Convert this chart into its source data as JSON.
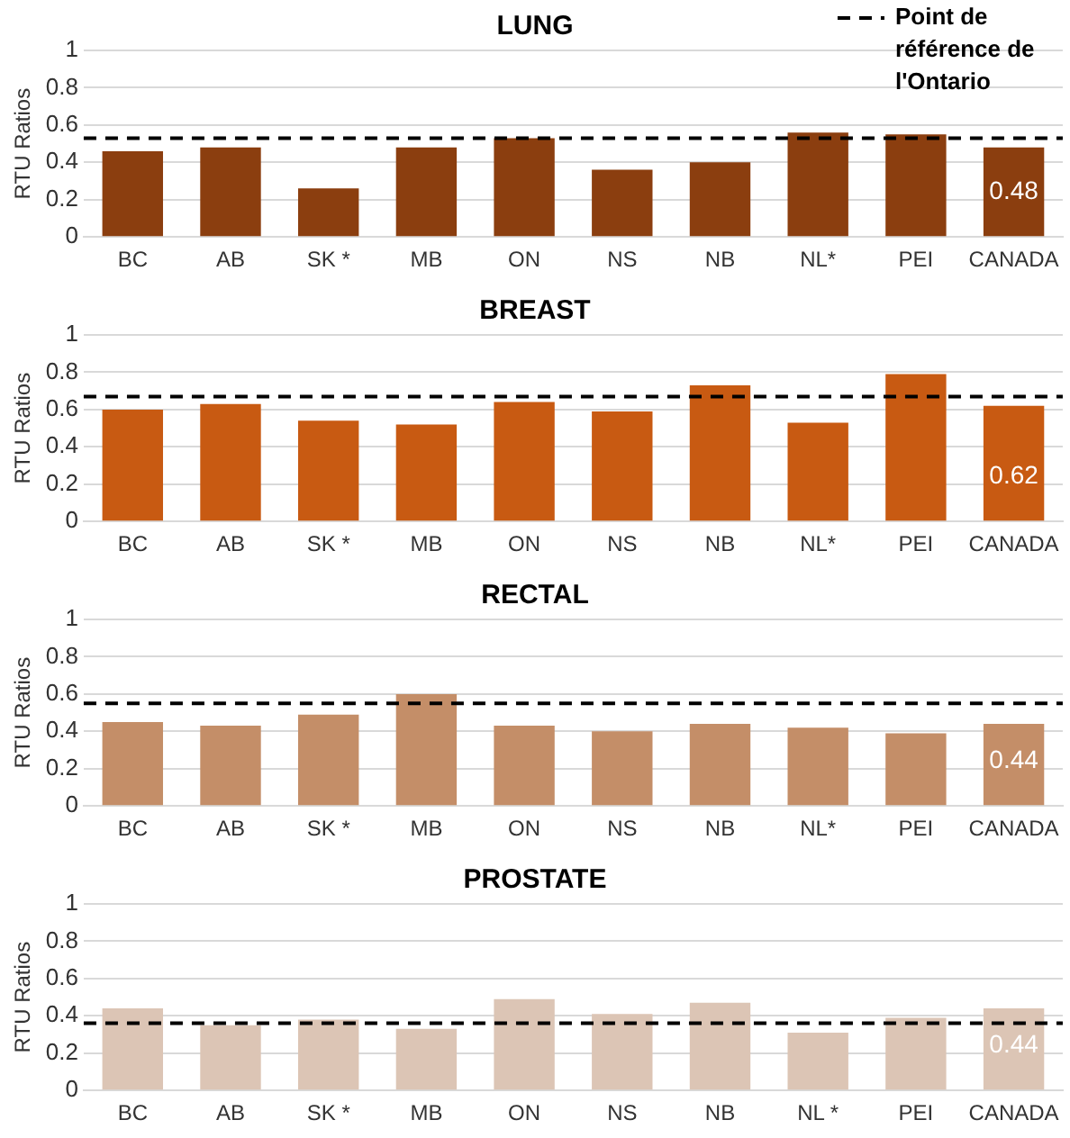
{
  "chart_data": [
    {
      "type": "bar",
      "title": "LUNG",
      "ylabel": "RTU Ratios",
      "categories": [
        "BC",
        "AB",
        "SK *",
        "MB",
        "ON",
        "NS",
        "NB",
        "NL*",
        "PEI",
        "CANADA"
      ],
      "values": [
        0.46,
        0.48,
        0.26,
        0.48,
        0.53,
        0.36,
        0.4,
        0.56,
        0.55,
        0.48
      ],
      "color": "#8b3e0f",
      "value_labels": [
        null,
        null,
        null,
        null,
        null,
        null,
        null,
        null,
        null,
        "0.48"
      ],
      "ylim": [
        0,
        1
      ],
      "yticks": [
        0,
        0.2,
        0.4,
        0.6,
        0.8,
        1
      ],
      "grid": "y",
      "legend": "top right",
      "ref_lines": [
        {
          "axis": "y",
          "value": 0.53,
          "label": "Point de référence de l'Ontario",
          "line_style": "dashed",
          "color": "#000000"
        }
      ]
    },
    {
      "type": "bar",
      "title": "BREAST",
      "ylabel": "RTU Ratios",
      "categories": [
        "BC",
        "AB",
        "SK *",
        "MB",
        "ON",
        "NS",
        "NB",
        "NL*",
        "PEI",
        "CANADA"
      ],
      "values": [
        0.6,
        0.63,
        0.54,
        0.52,
        0.64,
        0.59,
        0.73,
        0.53,
        0.79,
        0.62
      ],
      "color": "#c85a12",
      "value_labels": [
        null,
        null,
        null,
        null,
        null,
        null,
        null,
        null,
        null,
        "0.62"
      ],
      "ylim": [
        0,
        1
      ],
      "yticks": [
        0,
        0.2,
        0.4,
        0.6,
        0.8,
        1
      ],
      "grid": "y",
      "ref_lines": [
        {
          "axis": "y",
          "value": 0.67,
          "line_style": "dashed",
          "color": "#000000"
        }
      ]
    },
    {
      "type": "bar",
      "title": "RECTAL",
      "ylabel": "RTU Ratios",
      "categories": [
        "BC",
        "AB",
        "SK *",
        "MB",
        "ON",
        "NS",
        "NB",
        "NL*",
        "PEI",
        "CANADA"
      ],
      "values": [
        0.45,
        0.43,
        0.49,
        0.6,
        0.43,
        0.4,
        0.44,
        0.42,
        0.39,
        0.44
      ],
      "color": "#c48e68",
      "value_labels": [
        null,
        null,
        null,
        null,
        null,
        null,
        null,
        null,
        null,
        "0.44"
      ],
      "ylim": [
        0,
        1
      ],
      "yticks": [
        0,
        0.2,
        0.4,
        0.6,
        0.8,
        1
      ],
      "grid": "y",
      "ref_lines": [
        {
          "axis": "y",
          "value": 0.55,
          "line_style": "dashed",
          "color": "#000000"
        }
      ]
    },
    {
      "type": "bar",
      "title": "PROSTATE",
      "ylabel": "RTU Ratios",
      "categories": [
        "BC",
        "AB",
        "SK *",
        "MB",
        "ON",
        "NS",
        "NB",
        "NL *",
        "PEI",
        "CANADA"
      ],
      "values": [
        0.44,
        0.35,
        0.38,
        0.33,
        0.49,
        0.41,
        0.47,
        0.31,
        0.39,
        0.44
      ],
      "color": "#dcc5b5",
      "value_labels": [
        null,
        null,
        null,
        null,
        null,
        null,
        null,
        null,
        null,
        "0.44"
      ],
      "ylim": [
        0,
        1
      ],
      "yticks": [
        0,
        0.2,
        0.4,
        0.6,
        0.8,
        1
      ],
      "grid": "y",
      "ref_lines": [
        {
          "axis": "y",
          "value": 0.36,
          "line_style": "dashed",
          "color": "#000000"
        }
      ]
    }
  ]
}
